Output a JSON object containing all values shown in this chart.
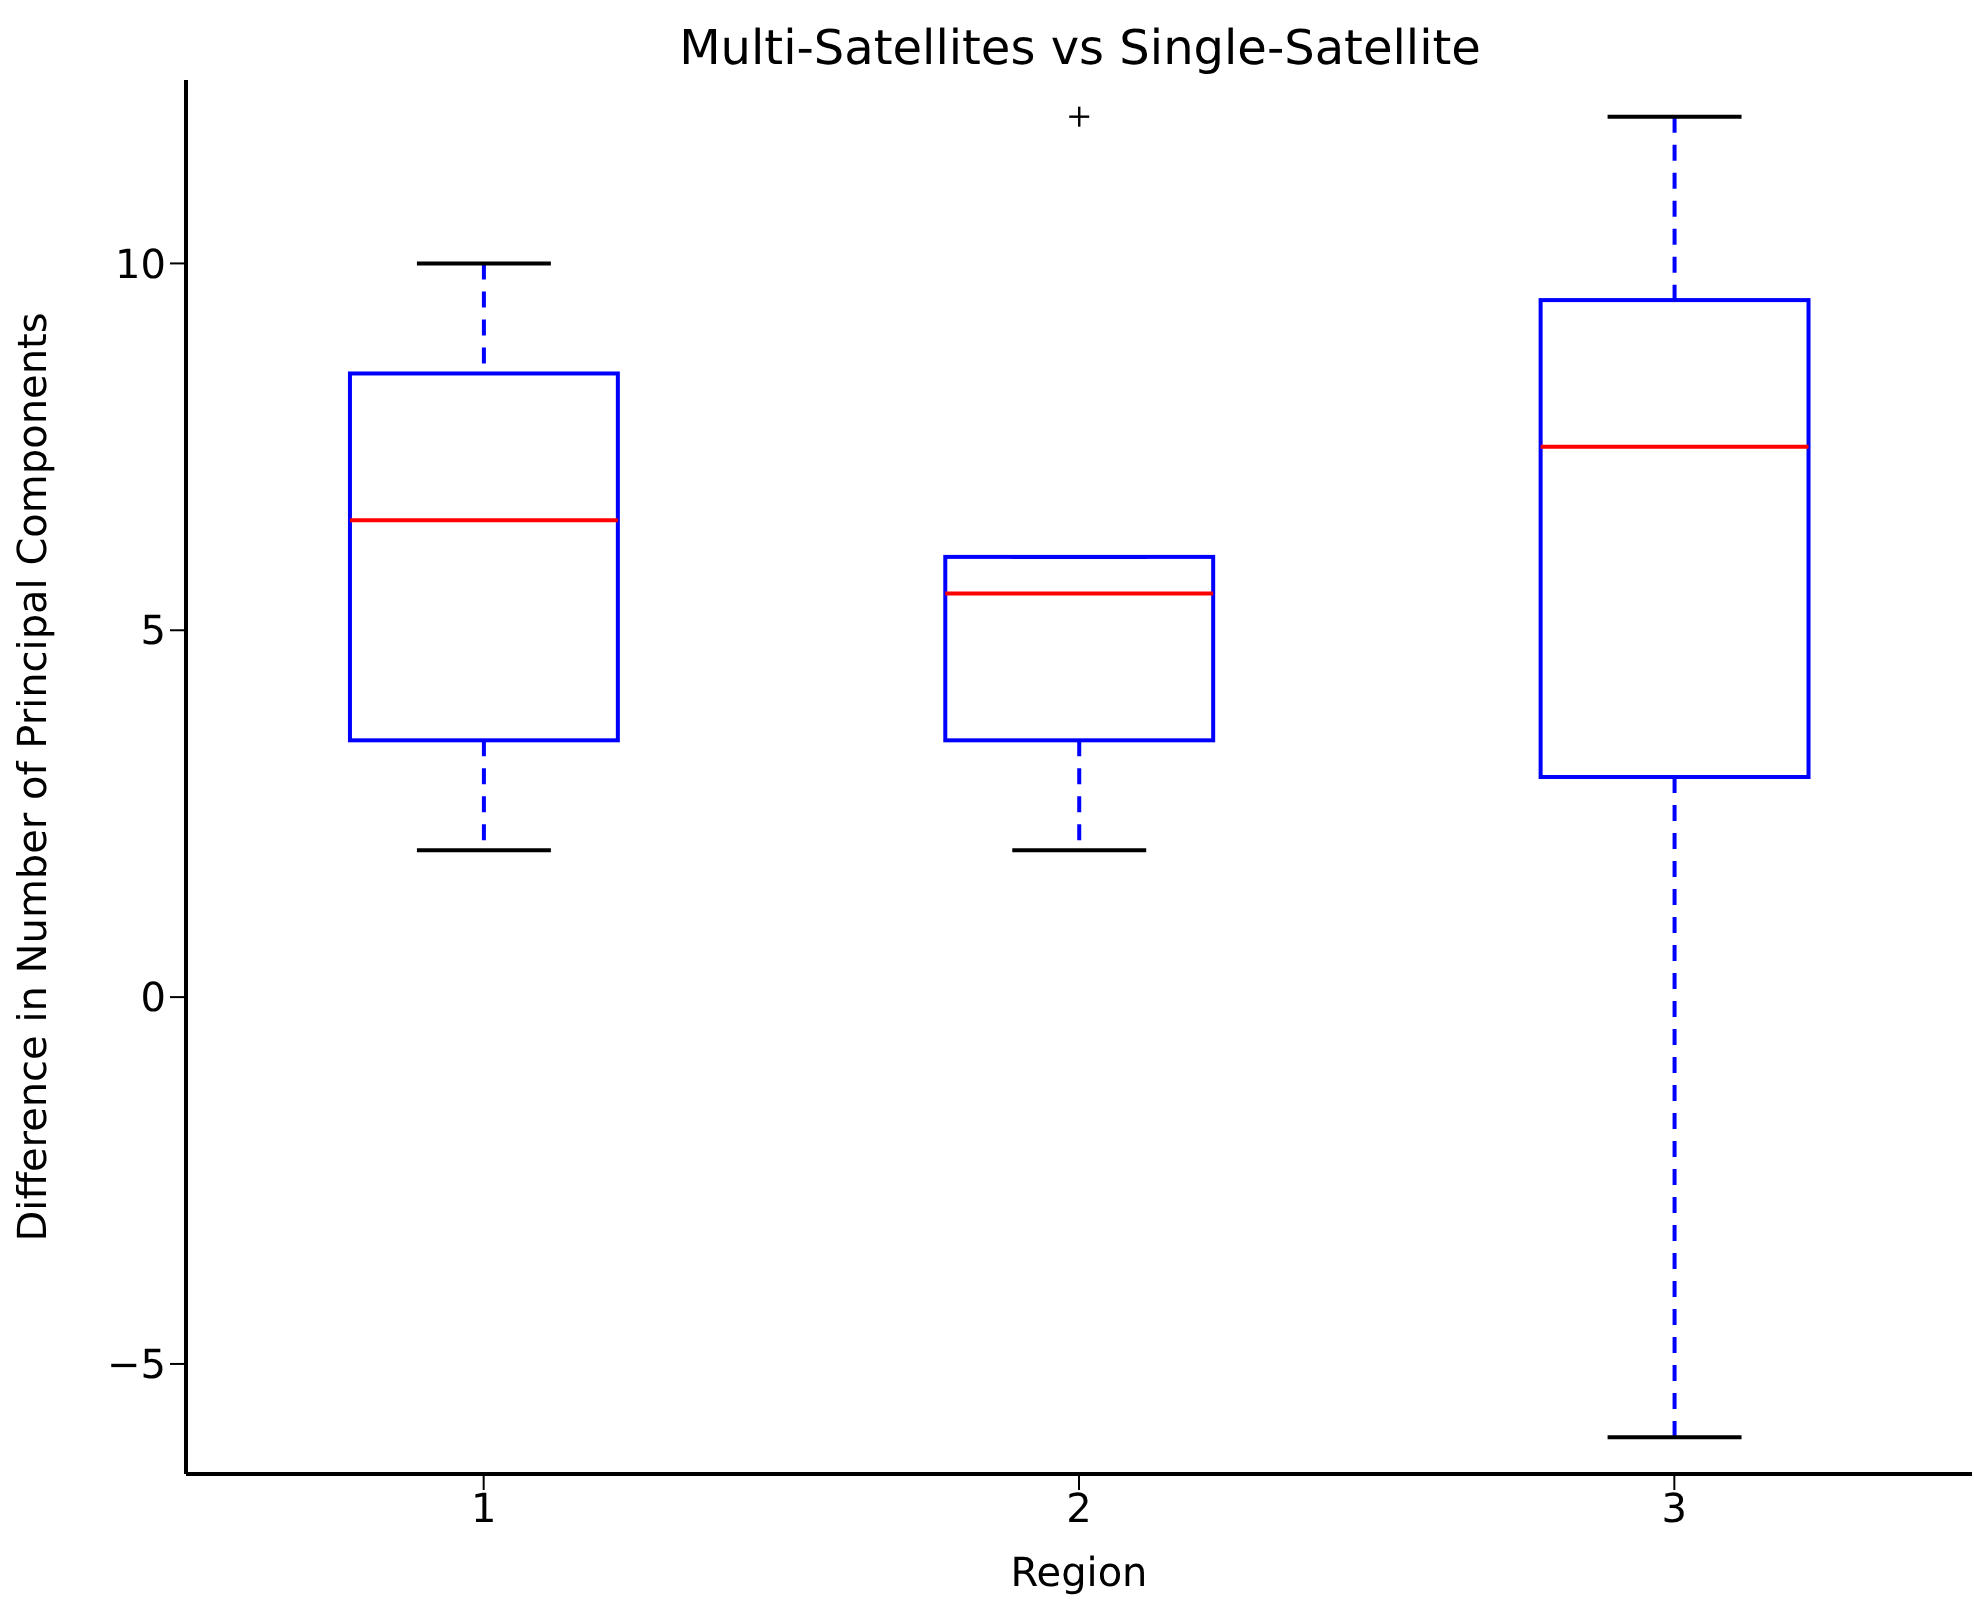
{
  "chart_data": {
    "type": "box",
    "title": "Multi-Satellites vs Single-Satellite",
    "xlabel": "Region",
    "ylabel": "Difference in Number of Principal Components",
    "categories": [
      "1",
      "2",
      "3"
    ],
    "color": "#0000ff",
    "boxes": [
      {
        "low": 2,
        "q1": 3.5,
        "median": 6.5,
        "q3": 8.5,
        "high": 10
      },
      {
        "low": 2,
        "q1": 3.5,
        "median": 5.5,
        "q3": 6,
        "high": 6,
        "outliers": [
          12
        ]
      },
      {
        "low": -6,
        "q1": 3,
        "median": 7.5,
        "q3": 9.5,
        "high": 12
      }
    ],
    "ylim": [
      -6.5,
      12.5
    ],
    "yticks": [
      {
        "value": -5,
        "label": "−5"
      },
      0,
      5,
      10
    ],
    "grid": false
  }
}
